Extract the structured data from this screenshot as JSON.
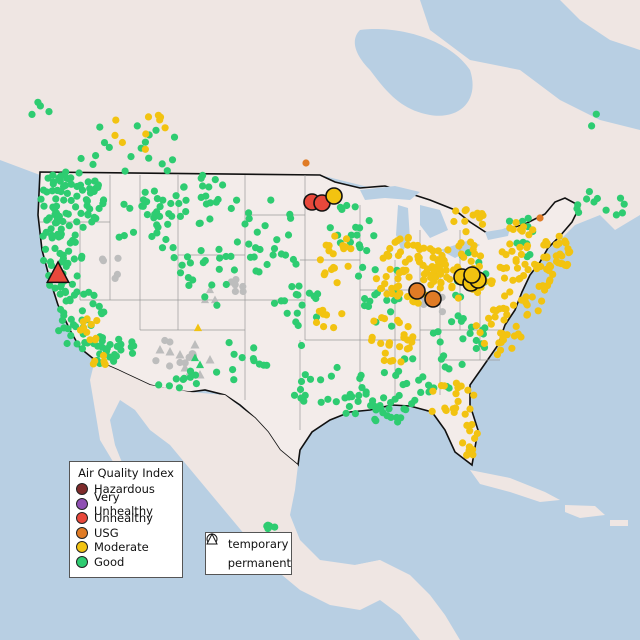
{
  "legend": {
    "title": "Air Quality Index",
    "categories": [
      {
        "key": "hazardous",
        "label": "Hazardous",
        "color": "#7e2b2b"
      },
      {
        "key": "very_unhealthy",
        "label": "Very Unhealthy",
        "color": "#8f4fb3"
      },
      {
        "key": "unhealthy",
        "label": "Unhealthy",
        "color": "#e8483b"
      },
      {
        "key": "usg",
        "label": "USG",
        "color": "#e07b25"
      },
      {
        "key": "moderate",
        "label": "Moderate",
        "color": "#f2c311"
      },
      {
        "key": "good",
        "label": "Good",
        "color": "#2ecc71"
      }
    ],
    "no_data_color": "#bdbdbd"
  },
  "type_legend": {
    "temporary": {
      "label": "temporary",
      "icon": "circle-icon"
    },
    "permanent": {
      "label": "permanent",
      "icon": "triangle-icon"
    }
  },
  "map": {
    "basemap_colors": {
      "water": "#b8cfe3",
      "land": "#efe6e3",
      "us": "#f3ecea",
      "border": "#111111",
      "state": "#9a9a9a"
    },
    "highlighted_monitors": [
      {
        "category": "unhealthy",
        "type": "permanent"
      },
      {
        "category": "unhealthy",
        "type": "temporary"
      },
      {
        "category": "unhealthy",
        "type": "temporary"
      },
      {
        "category": "moderate",
        "type": "temporary"
      },
      {
        "category": "usg",
        "type": "temporary"
      },
      {
        "category": "usg",
        "type": "temporary"
      },
      {
        "category": "moderate",
        "type": "temporary"
      },
      {
        "category": "moderate",
        "type": "temporary"
      },
      {
        "category": "moderate",
        "type": "temporary"
      },
      {
        "category": "moderate",
        "type": "temporary"
      }
    ]
  }
}
